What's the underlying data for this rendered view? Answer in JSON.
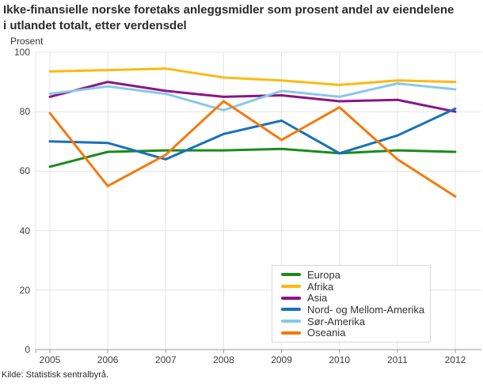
{
  "header": {
    "title_line1": "Ikke-finansielle norske foretaks anleggsmidler som prosent andel av eiendelene",
    "title_line2": "i utlandet totalt, etter verdensdel",
    "y_axis_title": "Prosent"
  },
  "footer": {
    "source": "Kilde: Statistisk sentralbyrå."
  },
  "colors": {
    "grid": "#e4e4e4",
    "axis": "#999999",
    "text": "#333333"
  },
  "chart_data": {
    "type": "line",
    "title": "Ikke-finansielle norske foretaks anleggsmidler som prosent andel av eiendelene i utlandet totalt, etter verdensdel",
    "xlabel": "",
    "ylabel": "Prosent",
    "x": [
      2005,
      2006,
      2007,
      2008,
      2009,
      2010,
      2011,
      2012
    ],
    "ylim": [
      0,
      100
    ],
    "yticks": [
      0,
      20,
      40,
      60,
      80,
      100
    ],
    "grid": true,
    "legend_position": "inside-bottom-right",
    "series": [
      {
        "name": "Europa",
        "color": "#1a8c1a",
        "values": [
          61.5,
          66.5,
          67,
          67,
          67.5,
          66,
          67,
          66.5
        ]
      },
      {
        "name": "Afrika",
        "color": "#fbba12",
        "values": [
          93.5,
          94,
          94.5,
          91.5,
          90.5,
          89,
          90.5,
          90
        ]
      },
      {
        "name": "Asia",
        "color": "#8b1486",
        "values": [
          85,
          90,
          87,
          85,
          85.5,
          83.5,
          84,
          80
        ]
      },
      {
        "name": "Nord- og Mellom-Amerika",
        "color": "#1771ba",
        "values": [
          70,
          69.5,
          64,
          72.5,
          77,
          66,
          72,
          81
        ]
      },
      {
        "name": "Sør-Amerika",
        "color": "#89c7e9",
        "values": [
          86,
          88.5,
          86,
          80.5,
          87,
          85,
          89.5,
          87.5
        ]
      },
      {
        "name": "Oseania",
        "color": "#f6780c",
        "values": [
          79.5,
          55,
          65.5,
          83.5,
          70.5,
          81.5,
          64,
          51.5
        ]
      }
    ]
  }
}
